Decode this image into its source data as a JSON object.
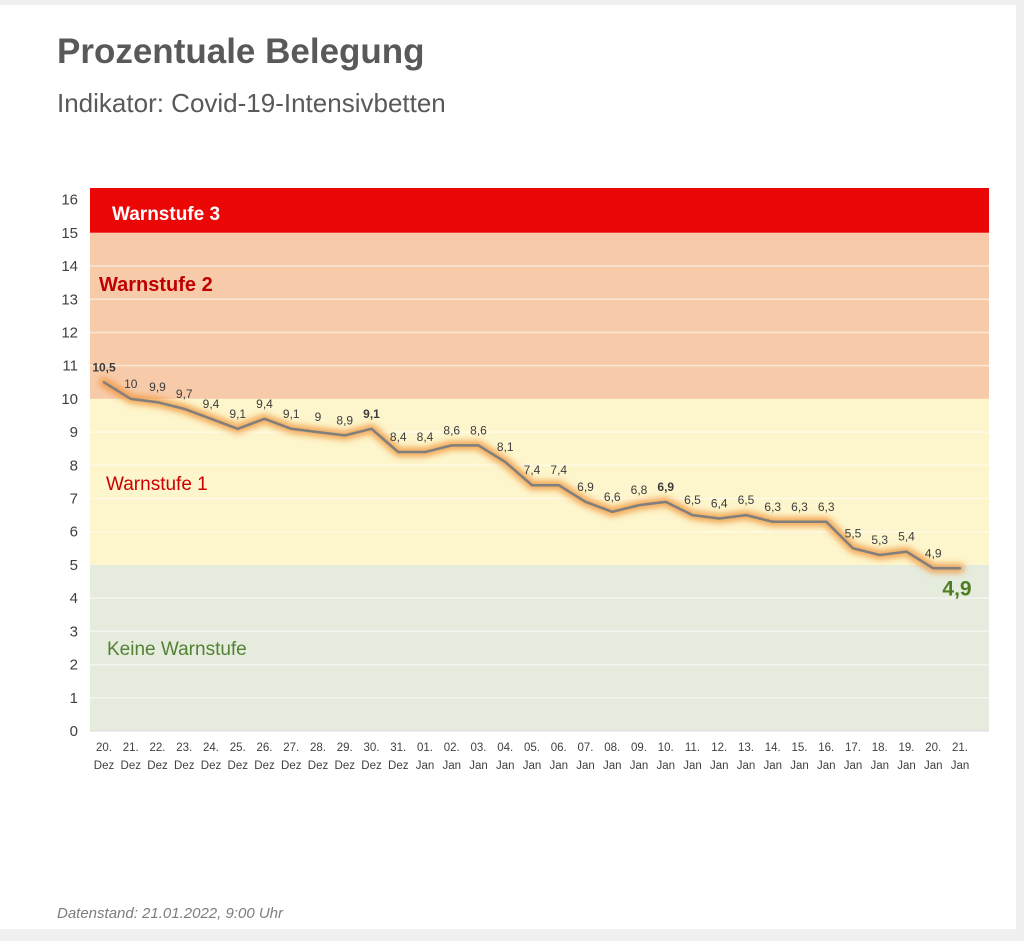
{
  "header": {
    "title": "Prozentuale Belegung",
    "subtitle": "Indikator: Covid-19-Intensivbetten",
    "title_color": "#595959"
  },
  "footer": {
    "datenstand": "Datenstand: 21.01.2022, 9:00 Uhr"
  },
  "chart_data": {
    "type": "line",
    "title": "Prozentuale Belegung",
    "subtitle": "Indikator: Covid-19-Intensivbetten",
    "categories": [
      "20. Dez",
      "21. Dez",
      "22. Dez",
      "23. Dez",
      "24. Dez",
      "25. Dez",
      "26. Dez",
      "27. Dez",
      "28. Dez",
      "29. Dez",
      "30. Dez",
      "31. Dez",
      "01. Jan",
      "02. Jan",
      "03. Jan",
      "04. Jan",
      "05. Jan",
      "06. Jan",
      "07. Jan",
      "08. Jan",
      "09. Jan",
      "10. Jan",
      "11. Jan",
      "12. Jan",
      "13. Jan",
      "14. Jan",
      "15. Jan",
      "16. Jan",
      "17. Jan",
      "18. Jan",
      "19. Jan",
      "20. Jan",
      "21. Jan"
    ],
    "values": [
      10.5,
      10,
      9.9,
      9.7,
      9.4,
      9.1,
      9.4,
      9.1,
      9,
      8.9,
      9.1,
      8.4,
      8.4,
      8.6,
      8.6,
      8.1,
      7.4,
      7.4,
      6.9,
      6.6,
      6.8,
      6.9,
      6.5,
      6.4,
      6.5,
      6.3,
      6.3,
      6.3,
      5.5,
      5.3,
      5.4,
      4.9,
      4.9
    ],
    "point_labels": [
      "10,5",
      "10",
      "9,9",
      "9,7",
      "9,4",
      "9,1",
      "9,4",
      "9,1",
      "9",
      "8,9",
      "9,1",
      "8,4",
      "8,4",
      "8,6",
      "8,6",
      "8,1",
      "7,4",
      "7,4",
      "6,9",
      "6,6",
      "6,8",
      "6,9",
      "6,5",
      "6,4",
      "6,5",
      "6,3",
      "6,3",
      "6,3",
      "5,5",
      "5,3",
      "5,4",
      "4,9",
      "4,9"
    ],
    "bold_label_indices": [
      0,
      10,
      21
    ],
    "final_label_index": 32,
    "final_label_color": "#4e7d22",
    "ylim": [
      0,
      16.35
    ],
    "yticks": [
      0,
      1,
      2,
      3,
      4,
      5,
      6,
      7,
      8,
      9,
      10,
      11,
      12,
      13,
      14,
      15,
      16
    ],
    "gridline_values": [
      1,
      2,
      3,
      4,
      6,
      7,
      8,
      9,
      11,
      12,
      13,
      14
    ],
    "grid_color": "rgba(255,255,255,0.55)",
    "line_color": "#7f7f7f",
    "glow_color": "#ef9134",
    "label_color": "#3d3d3d",
    "axis_text_color": "#404040",
    "legend_position": "none",
    "bands": [
      {
        "label": "Warnstufe 3",
        "from": 15,
        "to": 16.35,
        "fill": "#ec0707",
        "label_color": "#ffffff",
        "label_bold": true
      },
      {
        "label": "Warnstufe 2",
        "from": 10,
        "to": 15,
        "fill": "#f7cba9",
        "label_color": "#c00000",
        "label_bold": true
      },
      {
        "label": "Warnstufe 1",
        "from": 5,
        "to": 10,
        "fill": "#fdf5cb",
        "label_color": "#cc0000",
        "label_bold": false
      },
      {
        "label": "Keine Warnstufe",
        "from": 0,
        "to": 5,
        "fill": "#e5ecdd",
        "label_color": "#538135",
        "label_bold": false
      }
    ]
  }
}
